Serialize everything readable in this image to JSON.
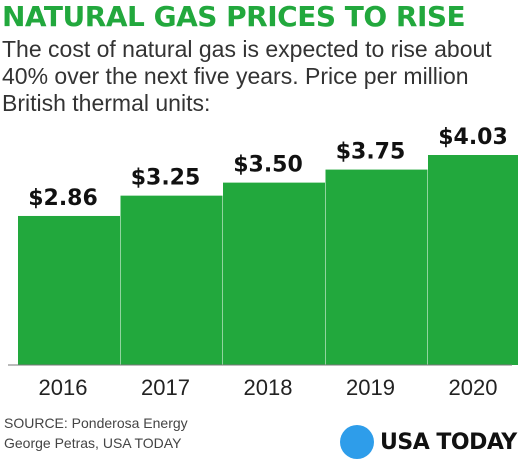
{
  "header": {
    "title": "NATURAL GAS PRICES TO RISE",
    "subtitle": "The cost of natural gas is expected to rise about 40% over the next five years. Price per million British thermal units:"
  },
  "chart_data": {
    "type": "bar",
    "categories": [
      "2016",
      "2017",
      "2018",
      "2019",
      "2020"
    ],
    "values": [
      2.86,
      3.25,
      3.5,
      3.75,
      4.03
    ],
    "value_labels": [
      "$2.86",
      "$3.25",
      "$3.50",
      "$3.75",
      "$4.03"
    ],
    "ylim": [
      0,
      4.03
    ],
    "grid": false,
    "bar_color": "#22a83d"
  },
  "footer": {
    "source_line": "SOURCE:  Ponderosa Energy",
    "credit_line": "George Petras, USA TODAY",
    "brand_name": "USA TODAY",
    "brand_color": "#2e9dea"
  }
}
